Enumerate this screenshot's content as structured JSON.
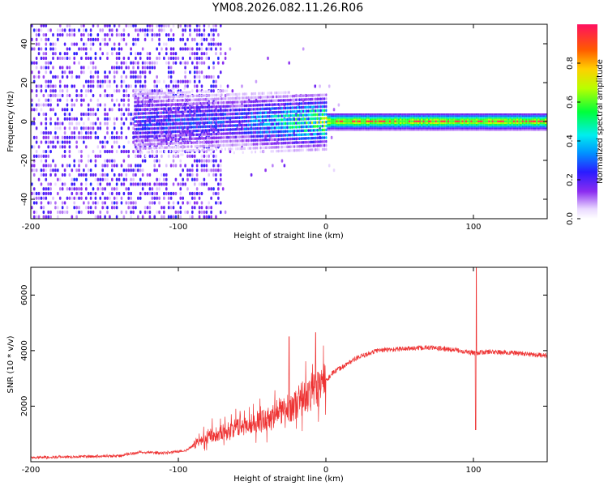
{
  "title": "YM08.2026.082.11.26.R06",
  "chart_data": [
    {
      "type": "heatmap",
      "name": "spectrogram",
      "xlabel": "Height of straight line (km)",
      "ylabel": "Frequency (Hz)",
      "xlim": [
        -200,
        150
      ],
      "ylim": [
        -50,
        50
      ],
      "xticks": [
        -200,
        -100,
        0,
        100
      ],
      "xtick_labels": [
        "-200",
        "-100",
        "0",
        "100"
      ],
      "yticks": [
        -40,
        -20,
        0,
        20,
        40
      ],
      "ytick_labels": [
        "-40",
        "-20",
        "0",
        "20",
        "40"
      ],
      "colorbar": {
        "label": "Normalized spectral amplitude",
        "range": [
          0,
          1
        ],
        "ticks": [
          0.0,
          0.2,
          0.4,
          0.6,
          0.8
        ],
        "tick_labels": [
          "0.0",
          "0.2",
          "0.4",
          "0.6",
          "0.8"
        ]
      },
      "features": {
        "noise_region_x": [
          -200,
          -72
        ],
        "signal_band_center_hz": 0,
        "peak_band_x": [
          0,
          150
        ],
        "peak_amplitude": 0.95
      }
    },
    {
      "type": "line",
      "name": "snr",
      "xlabel": "Height of straight line (km)",
      "ylabel": "SNR (10 * v/v)",
      "xlim": [
        -200,
        150
      ],
      "ylim": [
        0,
        7000
      ],
      "xticks": [
        -200,
        -100,
        0,
        100
      ],
      "xtick_labels": [
        "-200",
        "-100",
        "0",
        "100"
      ],
      "yticks": [
        2000,
        4000,
        6000
      ],
      "ytick_labels": [
        "2000",
        "4000",
        "6000"
      ],
      "color": "#ee3333",
      "trend_points": {
        "x": [
          -200,
          -140,
          -125,
          -110,
          -95,
          -80,
          -60,
          -40,
          -20,
          -5,
          5,
          20,
          35,
          50,
          70,
          90,
          100,
          110,
          130,
          150
        ],
        "y": [
          150,
          200,
          350,
          300,
          400,
          900,
          1200,
          1500,
          2000,
          2600,
          3200,
          3700,
          4000,
          4050,
          4100,
          4000,
          3900,
          3950,
          3900,
          3800
        ]
      },
      "spikes": [
        {
          "x": 102,
          "y": 7000
        },
        {
          "x": 101.5,
          "y": 1150
        },
        {
          "x": -25,
          "y": 4500
        },
        {
          "x": -7,
          "y": 4650
        }
      ]
    }
  ]
}
